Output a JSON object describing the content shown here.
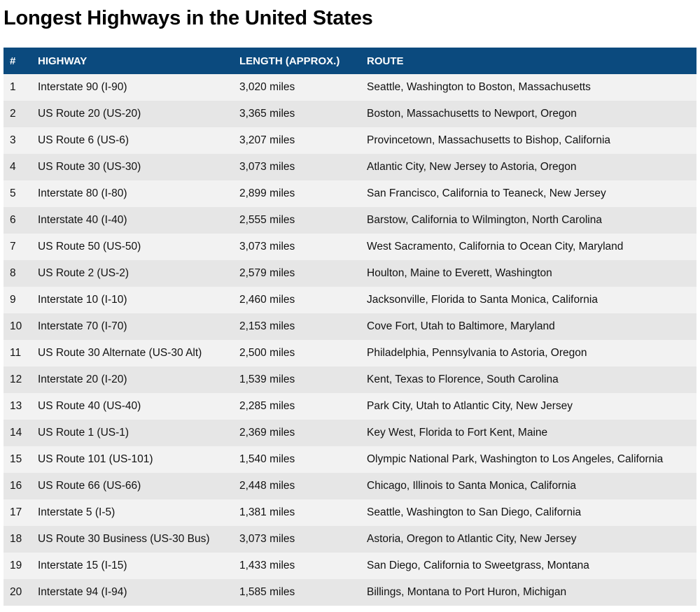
{
  "title": "Longest Highways in the United States",
  "header_color": "#0b4a7e",
  "columns": [
    "#",
    "HIGHWAY",
    "LENGTH (APPROX.)",
    "ROUTE"
  ],
  "rows": [
    [
      "1",
      "Interstate 90 (I-90)",
      "3,020 miles",
      "Seattle, Washington to Boston, Massachusetts"
    ],
    [
      "2",
      "US Route 20 (US-20)",
      "3,365 miles",
      "Boston, Massachusetts to Newport, Oregon"
    ],
    [
      "3",
      "US Route 6 (US-6)",
      "3,207 miles",
      "Provincetown, Massachusetts to Bishop, California"
    ],
    [
      "4",
      "US Route 30 (US-30)",
      "3,073 miles",
      "Atlantic City, New Jersey to Astoria, Oregon"
    ],
    [
      "5",
      "Interstate 80 (I-80)",
      "2,899 miles",
      "San Francisco, California to Teaneck, New Jersey"
    ],
    [
      "6",
      "Interstate 40 (I-40)",
      "2,555 miles",
      "Barstow, California to Wilmington, North Carolina"
    ],
    [
      "7",
      "US Route 50 (US-50)",
      "3,073 miles",
      "West Sacramento, California to Ocean City, Maryland"
    ],
    [
      "8",
      "US Route 2 (US-2)",
      "2,579 miles",
      "Houlton, Maine to Everett, Washington"
    ],
    [
      "9",
      "Interstate 10 (I-10)",
      "2,460 miles",
      "Jacksonville, Florida to Santa Monica, California"
    ],
    [
      "10",
      "Interstate 70 (I-70)",
      "2,153 miles",
      "Cove Fort, Utah to Baltimore, Maryland"
    ],
    [
      "11",
      "US Route 30 Alternate (US-30 Alt)",
      "2,500 miles",
      "Philadelphia, Pennsylvania to Astoria, Oregon"
    ],
    [
      "12",
      "Interstate 20 (I-20)",
      "1,539 miles",
      "Kent, Texas to Florence, South Carolina"
    ],
    [
      "13",
      "US Route 40 (US-40)",
      "2,285 miles",
      "Park City, Utah to Atlantic City, New Jersey"
    ],
    [
      "14",
      "US Route 1 (US-1)",
      "2,369 miles",
      "Key West, Florida to Fort Kent, Maine"
    ],
    [
      "15",
      "US Route 101 (US-101)",
      "1,540 miles",
      "Olympic National Park, Washington to Los Angeles, California"
    ],
    [
      "16",
      "US Route 66 (US-66)",
      "2,448 miles",
      "Chicago, Illinois to Santa Monica, California"
    ],
    [
      "17",
      "Interstate 5 (I-5)",
      "1,381 miles",
      "Seattle, Washington to San Diego, California"
    ],
    [
      "18",
      "US Route 30 Business (US-30 Bus)",
      "3,073 miles",
      "Astoria, Oregon to Atlantic City, New Jersey"
    ],
    [
      "19",
      "Interstate 15 (I-15)",
      "1,433 miles",
      "San Diego, California to Sweetgrass, Montana"
    ],
    [
      "20",
      "Interstate 94 (I-94)",
      "1,585 miles",
      "Billings, Montana to Port Huron, Michigan"
    ]
  ]
}
